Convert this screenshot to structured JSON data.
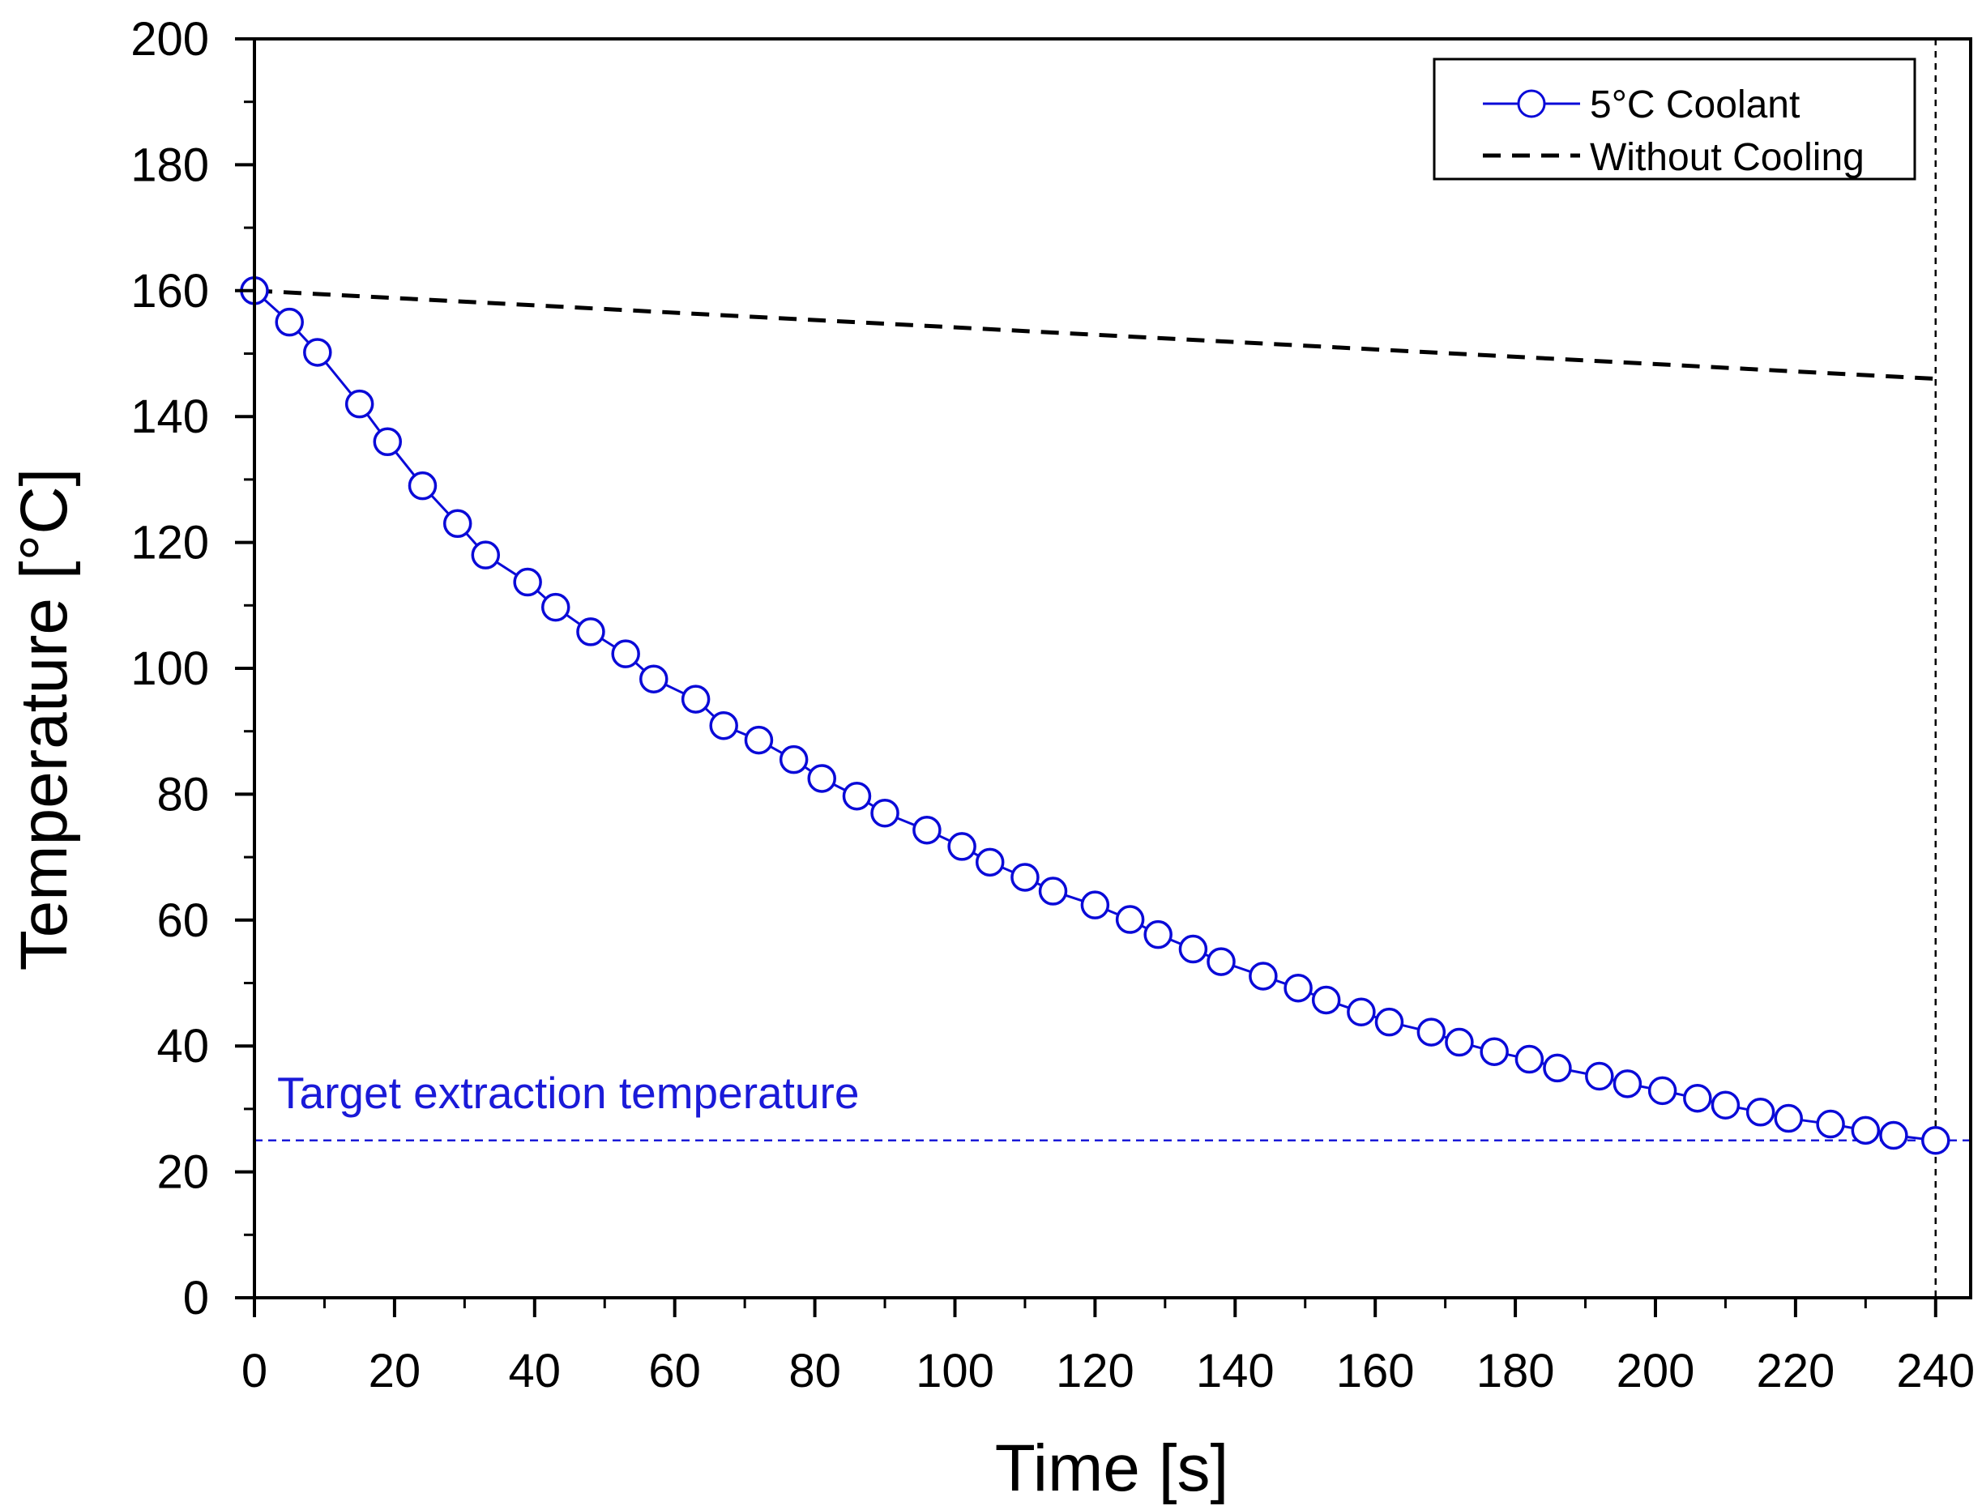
{
  "colors": {
    "coolant": "#0a0ad8",
    "without_cooling": "#000000",
    "target_line": "#1a1ad8",
    "axis": "#000000"
  },
  "chart_data": {
    "type": "line",
    "title": "",
    "xlabel": "Time [s]",
    "ylabel": "Temperature [°C]",
    "xlim": [
      0,
      245
    ],
    "ylim": [
      0,
      200
    ],
    "xticks": [
      0,
      20,
      40,
      60,
      80,
      100,
      120,
      140,
      160,
      180,
      200,
      220,
      240
    ],
    "yticks": [
      0,
      20,
      40,
      60,
      80,
      100,
      120,
      140,
      160,
      180,
      200
    ],
    "xtick_labels": [
      "0",
      "20",
      "40",
      "60",
      "80",
      "100",
      "120",
      "140",
      "160",
      "180",
      "200",
      "220",
      "240"
    ],
    "ytick_labels": [
      "0",
      "20",
      "40",
      "60",
      "80",
      "100",
      "120",
      "140",
      "160",
      "180",
      "200"
    ],
    "legend_position": "top-right",
    "series": [
      {
        "name": "5°C Coolant",
        "style": "solid line with open circle markers",
        "x": [
          0,
          5,
          9,
          15,
          19,
          24,
          29,
          33,
          39,
          43,
          48,
          53,
          57,
          63,
          67,
          72,
          77,
          81,
          86,
          90,
          96,
          101,
          105,
          110,
          114,
          120,
          125,
          129,
          134,
          138,
          144,
          149,
          153,
          158,
          162,
          168,
          172,
          177,
          182,
          186,
          192,
          196,
          201,
          206,
          210,
          215,
          219,
          225,
          230,
          234,
          240
        ],
        "y": [
          160,
          155,
          150.2,
          142,
          136,
          129,
          123,
          118,
          113.7,
          109.7,
          105.8,
          102.3,
          98.3,
          95.1,
          90.9,
          88.6,
          85.5,
          82.5,
          79.7,
          77,
          74.3,
          71.7,
          69.2,
          66.8,
          64.6,
          62.4,
          60.1,
          57.7,
          55.4,
          53.4,
          51.1,
          49.2,
          47.3,
          45.4,
          43.8,
          42.2,
          40.6,
          39.1,
          37.9,
          36.5,
          35.2,
          34,
          32.9,
          31.7,
          30.6,
          29.5,
          28.5,
          27.6,
          26.6,
          25.8,
          25
        ]
      },
      {
        "name": "Without Cooling",
        "style": "dashed line",
        "x": [
          0,
          240
        ],
        "y": [
          160,
          146
        ]
      }
    ],
    "annotations": [
      {
        "text": "Target extraction temperature",
        "type": "horizontal dashed line",
        "y": 25
      },
      {
        "text": "",
        "type": "vertical dashed line",
        "x": 240
      }
    ]
  }
}
